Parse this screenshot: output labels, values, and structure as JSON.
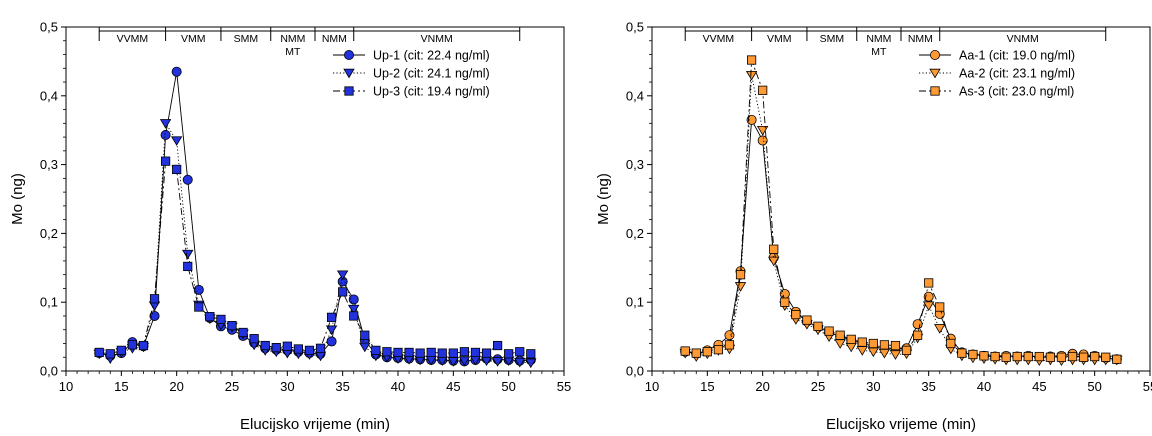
{
  "chart_data": [
    {
      "type": "line",
      "xlabel": "Elucijsko vrijeme (min)",
      "ylabel": "Mo (ng)",
      "xlim": [
        10,
        55
      ],
      "ylim": [
        0,
        0.5
      ],
      "xticks": [
        10,
        15,
        20,
        25,
        30,
        35,
        40,
        45,
        50,
        55
      ],
      "yticks": [
        0,
        0.1,
        0.2,
        0.3,
        0.4,
        0.5
      ],
      "ytick_labels": [
        "0,0",
        "0,1",
        "0,2",
        "0,3",
        "0,4",
        "0,5"
      ],
      "regions": [
        {
          "label": "VVMM",
          "start": 13,
          "end": 19
        },
        {
          "label": "VMM",
          "start": 19,
          "end": 24
        },
        {
          "label": "SMM",
          "start": 24,
          "end": 28.5
        },
        {
          "label": "NMM",
          "sublabel": "MT",
          "start": 28.5,
          "end": 32.5
        },
        {
          "label": "NMM",
          "start": 32.5,
          "end": 36
        },
        {
          "label": "VNMM",
          "start": 36,
          "end": 51
        }
      ],
      "legend_position": "top-right",
      "colors": {
        "fill": "#2233dd",
        "edge": "#000000"
      },
      "x": [
        13,
        14,
        15,
        16,
        17,
        18,
        19,
        20,
        21,
        22,
        23,
        24,
        25,
        26,
        27,
        28,
        29,
        30,
        31,
        32,
        33,
        34,
        35,
        36,
        37,
        38,
        39,
        40,
        41,
        42,
        43,
        44,
        45,
        46,
        47,
        48,
        49,
        50,
        51,
        52
      ],
      "series": [
        {
          "name": "Up-1 (cit: 22.4 ng/ml)",
          "marker": "circle",
          "line": "solid",
          "values": [
            0.026,
            0.022,
            0.026,
            0.042,
            0.036,
            0.08,
            0.343,
            0.435,
            0.278,
            0.118,
            0.077,
            0.065,
            0.06,
            0.051,
            0.041,
            0.033,
            0.031,
            0.03,
            0.028,
            0.026,
            0.025,
            0.043,
            0.13,
            0.104,
            0.045,
            0.024,
            0.02,
            0.019,
            0.018,
            0.017,
            0.016,
            0.016,
            0.015,
            0.014,
            0.016,
            0.018,
            0.017,
            0.016,
            0.015,
            0.016
          ]
        },
        {
          "name": "Up-2 (cit: 24.1 ng/ml)",
          "marker": "triangle-down",
          "line": "dotted",
          "values": [
            0.025,
            0.018,
            0.027,
            0.033,
            0.035,
            0.095,
            0.36,
            0.335,
            0.17,
            0.096,
            0.076,
            0.067,
            0.064,
            0.054,
            0.038,
            0.03,
            0.028,
            0.026,
            0.025,
            0.024,
            0.022,
            0.06,
            0.14,
            0.09,
            0.035,
            0.022,
            0.02,
            0.018,
            0.017,
            0.016,
            0.016,
            0.015,
            0.014,
            0.015,
            0.016,
            0.015,
            0.014,
            0.015,
            0.013,
            0.012
          ]
        },
        {
          "name": "Up-3 (cit: 19.4 ng/ml)",
          "marker": "square",
          "line": "dashed",
          "values": [
            0.027,
            0.025,
            0.03,
            0.038,
            0.037,
            0.105,
            0.305,
            0.293,
            0.152,
            0.093,
            0.079,
            0.075,
            0.066,
            0.056,
            0.047,
            0.037,
            0.034,
            0.036,
            0.032,
            0.03,
            0.033,
            0.078,
            0.115,
            0.08,
            0.052,
            0.03,
            0.028,
            0.027,
            0.027,
            0.026,
            0.027,
            0.026,
            0.026,
            0.028,
            0.027,
            0.026,
            0.037,
            0.025,
            0.028,
            0.025
          ]
        }
      ]
    },
    {
      "type": "line",
      "xlabel": "Elucijsko vrijeme (min)",
      "ylabel": "Mo (ng)",
      "xlim": [
        10,
        55
      ],
      "ylim": [
        0,
        0.5
      ],
      "xticks": [
        10,
        15,
        20,
        25,
        30,
        35,
        40,
        45,
        50,
        55
      ],
      "yticks": [
        0,
        0.1,
        0.2,
        0.3,
        0.4,
        0.5
      ],
      "ytick_labels": [
        "0,0",
        "0,1",
        "0,2",
        "0,3",
        "0,4",
        "0,5"
      ],
      "regions": [
        {
          "label": "VVMM",
          "start": 13,
          "end": 19
        },
        {
          "label": "VMM",
          "start": 19,
          "end": 24
        },
        {
          "label": "SMM",
          "start": 24,
          "end": 28.5
        },
        {
          "label": "NMM",
          "sublabel": "MT",
          "start": 28.5,
          "end": 32.5
        },
        {
          "label": "NMM",
          "start": 32.5,
          "end": 36
        },
        {
          "label": "VNMM",
          "start": 36,
          "end": 51
        }
      ],
      "legend_position": "top-right",
      "colors": {
        "fill": "#ff9933",
        "edge": "#000000"
      },
      "x": [
        13,
        14,
        15,
        16,
        17,
        18,
        19,
        20,
        21,
        22,
        23,
        24,
        25,
        26,
        27,
        28,
        29,
        30,
        31,
        32,
        33,
        34,
        35,
        36,
        37,
        38,
        39,
        40,
        41,
        42,
        43,
        44,
        45,
        46,
        47,
        48,
        49,
        50,
        51,
        52
      ],
      "series": [
        {
          "name": "Aa-1 (cit: 19.0 ng/ml)",
          "marker": "circle",
          "line": "solid",
          "values": [
            0.028,
            0.025,
            0.03,
            0.038,
            0.052,
            0.145,
            0.365,
            0.335,
            0.165,
            0.112,
            0.086,
            0.072,
            0.064,
            0.056,
            0.05,
            0.045,
            0.04,
            0.036,
            0.034,
            0.032,
            0.033,
            0.068,
            0.108,
            0.083,
            0.047,
            0.027,
            0.024,
            0.022,
            0.021,
            0.022,
            0.021,
            0.022,
            0.02,
            0.021,
            0.022,
            0.025,
            0.024,
            0.022,
            0.019,
            0.017
          ]
        },
        {
          "name": "Aa-2 (cit: 23.1 ng/ml)",
          "marker": "triangle-down",
          "line": "dotted",
          "values": [
            0.026,
            0.021,
            0.025,
            0.03,
            0.032,
            0.123,
            0.43,
            0.35,
            0.16,
            0.095,
            0.075,
            0.068,
            0.06,
            0.05,
            0.04,
            0.035,
            0.03,
            0.028,
            0.026,
            0.024,
            0.025,
            0.048,
            0.095,
            0.062,
            0.032,
            0.022,
            0.019,
            0.018,
            0.017,
            0.016,
            0.016,
            0.016,
            0.015,
            0.016,
            0.015,
            0.016,
            0.016,
            0.016,
            0.016,
            0.016
          ]
        },
        {
          "name": "As-3 (cit: 23.0 ng/ml)",
          "marker": "square",
          "line": "dashed",
          "values": [
            0.029,
            0.026,
            0.028,
            0.031,
            0.038,
            0.14,
            0.452,
            0.408,
            0.177,
            0.1,
            0.082,
            0.074,
            0.065,
            0.058,
            0.052,
            0.046,
            0.042,
            0.04,
            0.038,
            0.037,
            0.03,
            0.052,
            0.128,
            0.093,
            0.04,
            0.026,
            0.024,
            0.022,
            0.021,
            0.02,
            0.021,
            0.021,
            0.021,
            0.02,
            0.02,
            0.021,
            0.02,
            0.021,
            0.02,
            0.017
          ]
        }
      ]
    }
  ]
}
